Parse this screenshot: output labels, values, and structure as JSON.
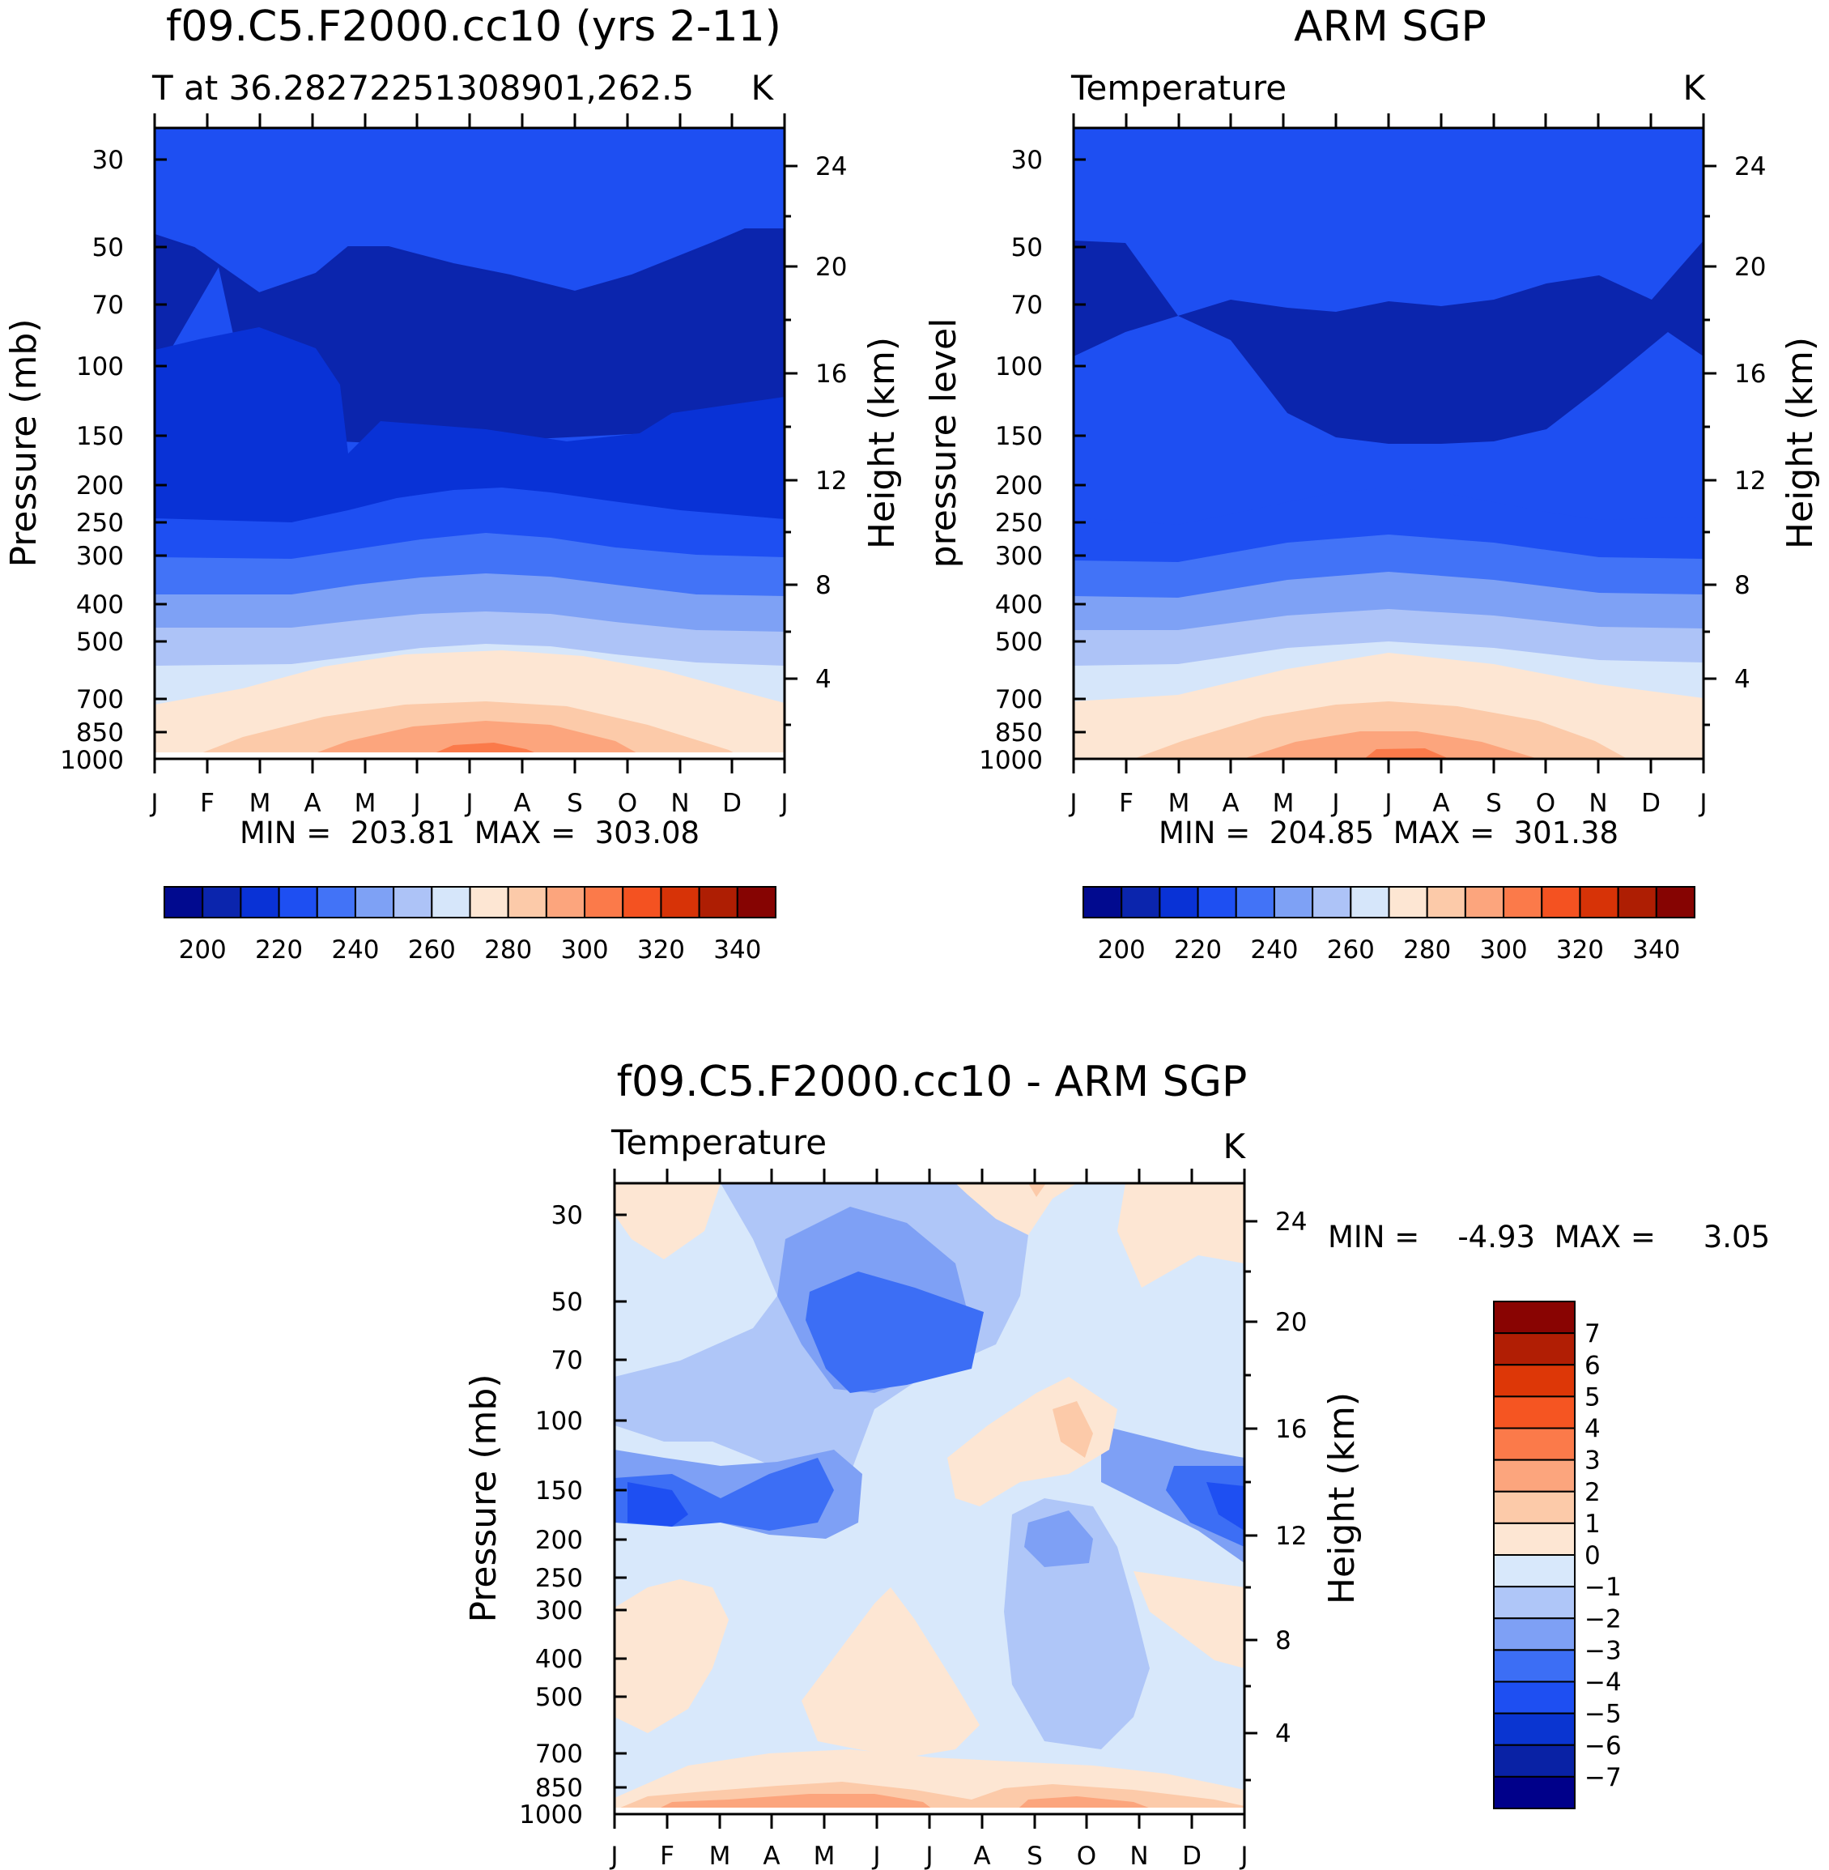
{
  "chart_data": [
    {
      "type": "contour",
      "title": "f09.C5.F2000.cc10 (yrs 2-11)",
      "subtitle_left": "T at 36.28272251308901,262.5",
      "units": "K",
      "ylabel": "Pressure (mb)",
      "ylabel_right": "Height (km)",
      "x_ticks": [
        "J",
        "F",
        "M",
        "A",
        "M",
        "J",
        "J",
        "A",
        "S",
        "O",
        "N",
        "D",
        "J"
      ],
      "pressure_ticks": [
        30,
        50,
        70,
        100,
        150,
        200,
        250,
        300,
        400,
        500,
        700,
        850,
        1000
      ],
      "height_ticks": [
        24,
        20,
        16,
        12,
        8,
        4
      ],
      "stats": "MIN =  203.81  MAX =  303.08",
      "min": 203.81,
      "max": 303.08,
      "colorbar": {
        "orientation": "horizontal",
        "labels": [
          "200",
          "220",
          "240",
          "260",
          "280",
          "300",
          "320",
          "340"
        ],
        "levels": [
          195,
          200,
          205,
          210,
          215,
          220,
          225,
          230,
          235,
          240,
          245,
          250,
          255,
          260,
          265,
          270,
          275,
          280,
          285,
          290,
          295,
          300,
          305,
          310,
          315,
          320,
          325,
          330,
          335,
          340,
          345
        ]
      }
    },
    {
      "type": "contour",
      "title": "ARM SGP",
      "subtitle_left": "Temperature",
      "units": "K",
      "ylabel": "pressure level",
      "ylabel_right": "Height (km)",
      "x_ticks": [
        "J",
        "F",
        "M",
        "A",
        "M",
        "J",
        "J",
        "A",
        "S",
        "O",
        "N",
        "D",
        "J"
      ],
      "pressure_ticks": [
        30,
        50,
        70,
        100,
        150,
        200,
        250,
        300,
        400,
        500,
        700,
        850,
        1000
      ],
      "height_ticks": [
        24,
        20,
        16,
        12,
        8,
        4
      ],
      "stats": "MIN =  204.85  MAX =  301.38",
      "min": 204.85,
      "max": 301.38,
      "colorbar": {
        "orientation": "horizontal",
        "labels": [
          "200",
          "220",
          "240",
          "260",
          "280",
          "300",
          "320",
          "340"
        ]
      }
    },
    {
      "type": "contour",
      "title": "f09.C5.F2000.cc10 - ARM SGP",
      "subtitle_left": "Temperature",
      "units": "K",
      "ylabel": "Pressure (mb)",
      "ylabel_right": "Height (km)",
      "x_ticks": [
        "J",
        "F",
        "M",
        "A",
        "M",
        "J",
        "J",
        "A",
        "S",
        "O",
        "N",
        "D",
        "J"
      ],
      "pressure_ticks": [
        30,
        50,
        70,
        100,
        150,
        200,
        250,
        300,
        400,
        500,
        700,
        850,
        1000
      ],
      "height_ticks": [
        24,
        20,
        16,
        12,
        8,
        4
      ],
      "stats": "MIN =    -4.93  MAX =     3.05",
      "min": -4.93,
      "max": 3.05,
      "colorbar": {
        "orientation": "vertical",
        "labels": [
          "7",
          "6",
          "5",
          "4",
          "3",
          "2",
          "1",
          "0",
          "-1",
          "-2",
          "-3",
          "-4",
          "-5",
          "-6",
          "-7"
        ]
      }
    }
  ],
  "colors": {
    "abs_palette": [
      "#010a8f",
      "#0b25ad",
      "#0932d6",
      "#1e4ff2",
      "#4273f7",
      "#7ea1f5",
      "#adc3f7",
      "#d6e6fa",
      "#fde6d3",
      "#fccaa9",
      "#fca57d",
      "#fb7a4a",
      "#f45221",
      "#d73307",
      "#ae1e03",
      "#860402"
    ],
    "diff_palette": [
      "#00008a",
      "#0922a5",
      "#0a35d1",
      "#1e4ff2",
      "#3c6ef5",
      "#7ea0f5",
      "#afc6f8",
      "#d8e8fb",
      "#fde6d3",
      "#fccaa9",
      "#fca57d",
      "#fb7a4a",
      "#f55522",
      "#dd3707",
      "#b11e04",
      "#890402"
    ]
  }
}
